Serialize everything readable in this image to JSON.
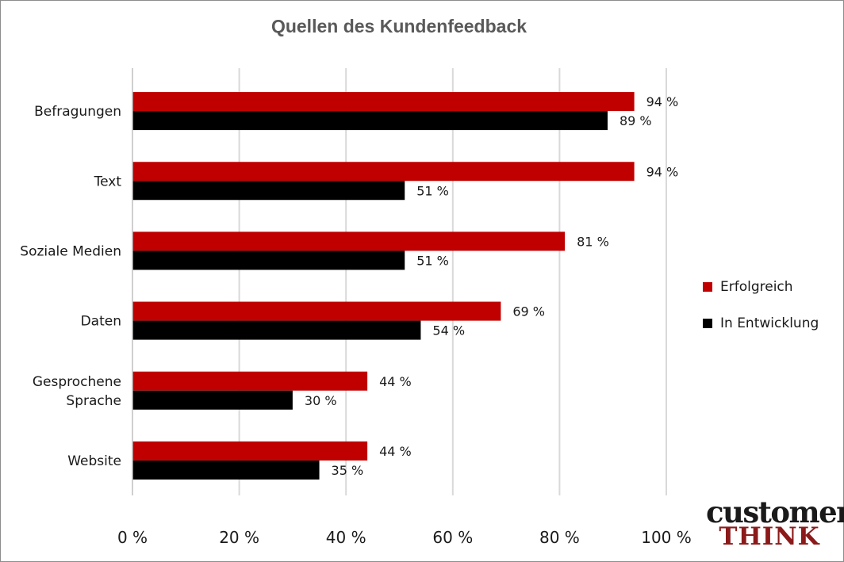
{
  "chart_data": {
    "type": "bar",
    "orientation": "horizontal",
    "title": "Quellen des Kundenfeedback",
    "categories": [
      "Befragungen",
      "Text",
      "Soziale Medien",
      "Daten",
      "Gesprochene Sprache",
      "Website"
    ],
    "category_lines": [
      [
        "Befragungen"
      ],
      [
        "Text"
      ],
      [
        "Soziale Medien"
      ],
      [
        "Daten"
      ],
      [
        "Gesprochene",
        "Sprache"
      ],
      [
        "Website"
      ]
    ],
    "series": [
      {
        "name": "Erfolgreich",
        "color": "#c00000",
        "values": [
          94,
          94,
          81,
          69,
          44,
          44
        ],
        "labels": [
          "94 %",
          "94 %",
          "81 %",
          "69 %",
          "44 %",
          "44 %"
        ]
      },
      {
        "name": "In Entwicklung",
        "color": "#000000",
        "values": [
          89,
          51,
          51,
          54,
          30,
          35
        ],
        "labels": [
          "89 %",
          "51 %",
          "51 %",
          "54 %",
          "30 %",
          "35 %"
        ]
      }
    ],
    "xlim": [
      0,
      100
    ],
    "xticks": [
      0,
      20,
      40,
      60,
      80,
      100
    ],
    "xtick_labels": [
      "0 %",
      "20 %",
      "40 %",
      "60 %",
      "80 %",
      "100 %"
    ],
    "grid": true,
    "legend_position": "right"
  },
  "logo": {
    "top": "customer",
    "bottom": "THINK"
  }
}
